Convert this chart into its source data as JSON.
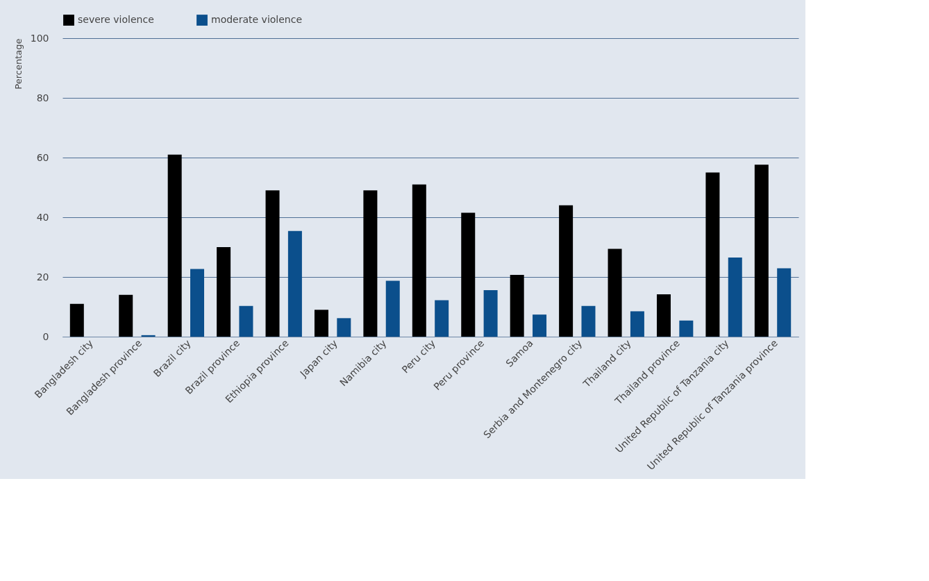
{
  "chart_data": {
    "type": "bar",
    "ylabel": "Percentage",
    "categories": [
      "Bangladesh city",
      "Bangladesh province",
      "Brazil city",
      "Brazil province",
      "Ethiopia province",
      "Japan city",
      "Namibia city",
      "Peru city",
      "Peru province",
      "Samoa",
      "Serbia and Montenegro city",
      "Thailand city",
      "Thailand province",
      "United Republic of Tanzania city",
      "United Republic of Tanzania province"
    ],
    "series": [
      {
        "name": "severe violence",
        "color": "#000000",
        "values": [
          11,
          14,
          61,
          30,
          49,
          9,
          49,
          51,
          41.5,
          20.7,
          44,
          29.4,
          14.2,
          55,
          57.6
        ]
      },
      {
        "name": "moderate violence",
        "color": "#0b4f8c",
        "values": [
          null,
          0.5,
          22.7,
          10.3,
          35.4,
          6.2,
          18.7,
          12.2,
          15.6,
          7.4,
          10.3,
          8.5,
          5.4,
          26.5,
          22.9
        ]
      }
    ],
    "ylim": [
      0,
      100
    ],
    "yticks": [
      0,
      20,
      40,
      60,
      80,
      100
    ],
    "grid": "y",
    "legend": "top left"
  }
}
